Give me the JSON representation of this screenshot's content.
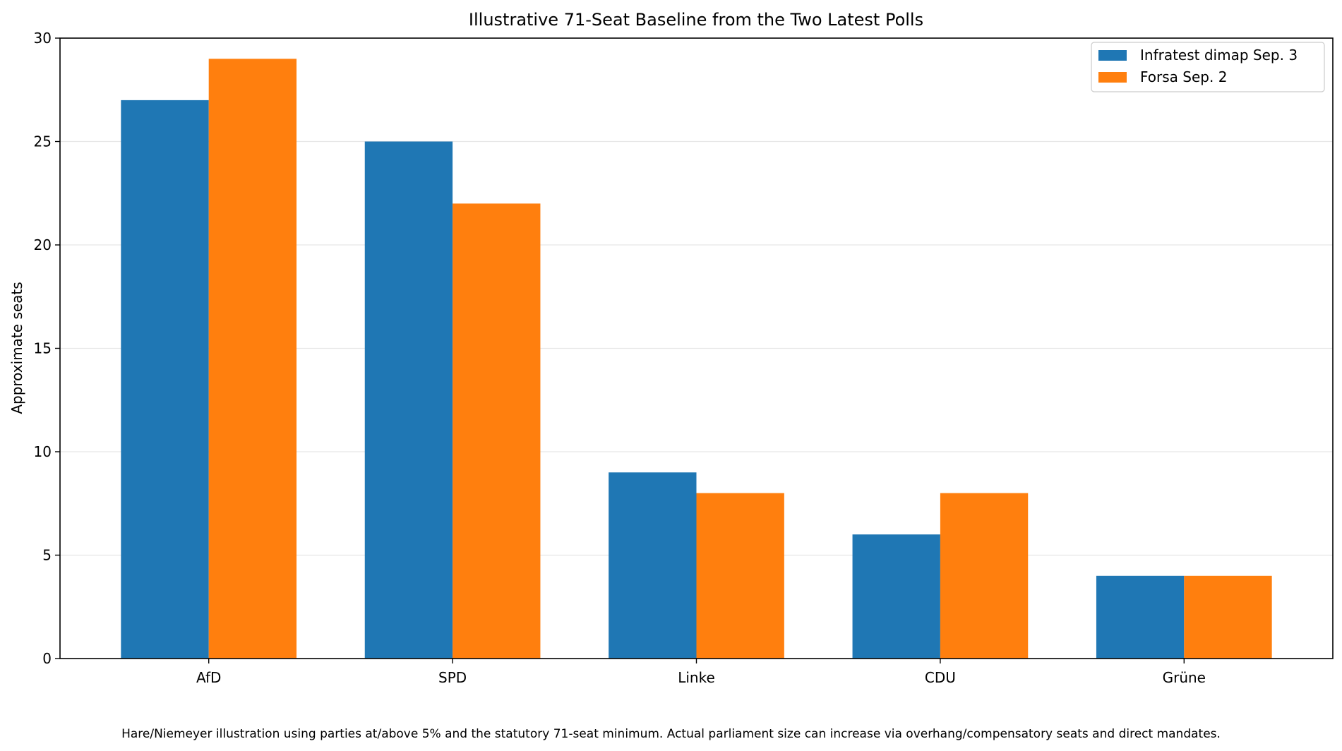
{
  "chart_data": {
    "type": "bar",
    "title": "Illustrative 71-Seat Baseline from the Two Latest Polls",
    "xlabel": "",
    "ylabel": "Approximate seats",
    "categories": [
      "AfD",
      "SPD",
      "Linke",
      "CDU",
      "Grüne"
    ],
    "series": [
      {
        "name": "Infratest dimap Sep. 3",
        "color": "#1f77b4",
        "values": [
          27,
          25,
          9,
          6,
          4
        ]
      },
      {
        "name": "Forsa Sep. 2",
        "color": "#ff7f0e",
        "values": [
          29,
          22,
          8,
          8,
          4
        ]
      }
    ],
    "ylim": [
      0,
      30
    ],
    "yticks": [
      0,
      5,
      10,
      15,
      20,
      25,
      30
    ],
    "grid": "y",
    "legend_position": "top-right"
  },
  "footnote": "Hare/Niemeyer illustration using parties at/above 5% and the statutory 71-seat minimum. Actual parliament size can increase via overhang/compensatory seats and direct mandates."
}
